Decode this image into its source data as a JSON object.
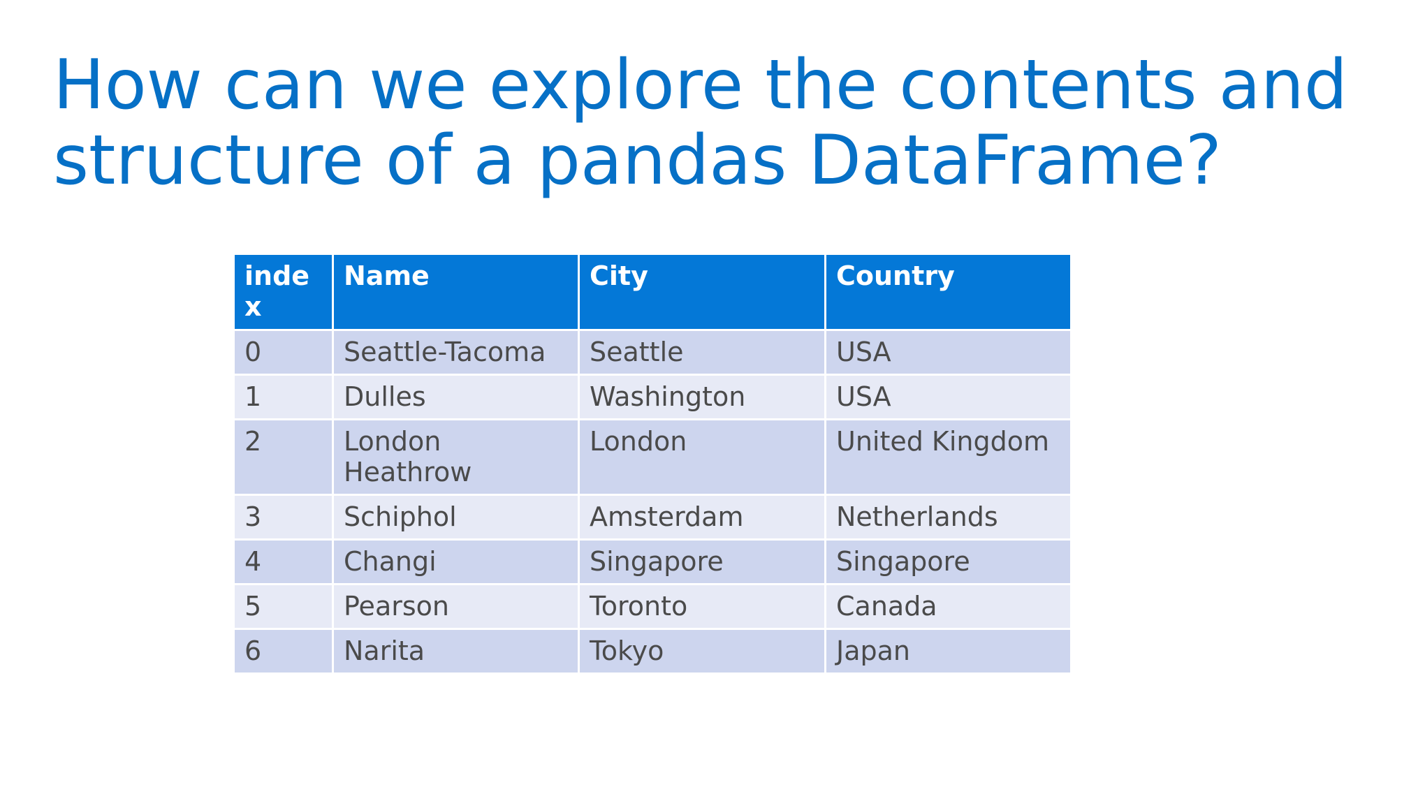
{
  "slide": {
    "title_line_1": "How can we explore the contents and",
    "title_line_2": "structure of a pandas DataFrame?"
  },
  "table": {
    "headers": [
      "index",
      "Name",
      "City",
      "Country"
    ],
    "rows": [
      [
        "0",
        "Seattle-Tacoma",
        "Seattle",
        "USA"
      ],
      [
        "1",
        "Dulles",
        "Washington",
        "USA"
      ],
      [
        "2",
        "London Heathrow",
        "London",
        "United Kingdom"
      ],
      [
        "3",
        "Schiphol",
        "Amsterdam",
        "Netherlands"
      ],
      [
        "4",
        "Changi",
        "Singapore",
        "Singapore"
      ],
      [
        "5",
        "Pearson",
        "Toronto",
        "Canada"
      ],
      [
        "6",
        "Narita",
        "Tokyo",
        "Japan"
      ]
    ]
  },
  "colors": {
    "title": "#0670c6",
    "header_bg": "#0478d7",
    "header_text": "#ffffff",
    "row_band_dark": "#cdd5ee",
    "row_band_light": "#e7eaf6",
    "cell_text": "#4a4a4a"
  }
}
